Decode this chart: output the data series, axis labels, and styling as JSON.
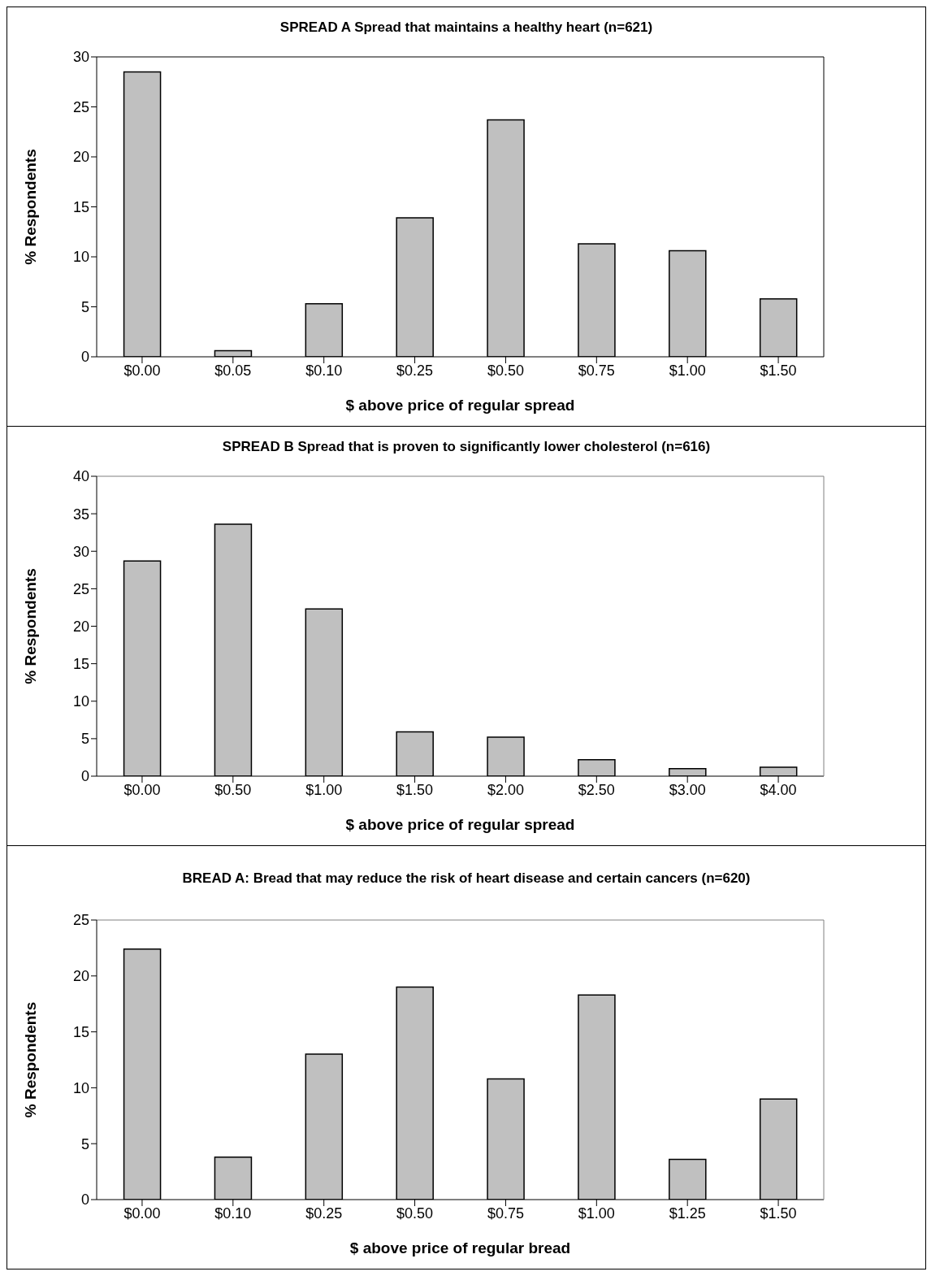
{
  "chart_data": [
    {
      "type": "bar",
      "title": "SPREAD A Spread that maintains a healthy heart (n=621)",
      "xlabel": "$ above price of regular spread",
      "ylabel": "% Respondents",
      "categories": [
        "$0.00",
        "$0.05",
        "$0.10",
        "$0.25",
        "$0.50",
        "$0.75",
        "$1.00",
        "$1.50"
      ],
      "values": [
        28.5,
        0.6,
        5.3,
        13.9,
        23.7,
        11.3,
        10.6,
        5.8
      ],
      "color": "#c0c0c0",
      "ylim": [
        0,
        30
      ],
      "yticks": [
        0,
        5,
        10,
        15,
        20,
        25,
        30
      ]
    },
    {
      "type": "bar",
      "title": "SPREAD B Spread that is proven to significantly lower cholesterol (n=616)",
      "xlabel": "$ above price of regular spread",
      "ylabel": "% Respondents",
      "categories": [
        "$0.00",
        "$0.50",
        "$1.00",
        "$1.50",
        "$2.00",
        "$2.50",
        "$3.00",
        "$4.00"
      ],
      "values": [
        28.7,
        33.6,
        22.3,
        5.9,
        5.2,
        2.2,
        1.0,
        1.2
      ],
      "color": "#c0c0c0",
      "ylim": [
        0,
        40
      ],
      "yticks": [
        0,
        5,
        10,
        15,
        20,
        25,
        30,
        35,
        40
      ]
    },
    {
      "type": "bar",
      "title": "BREAD A: Bread that may reduce the risk of heart disease and certain cancers (n=620)",
      "xlabel": "$ above price of regular bread",
      "ylabel": "% Respondents",
      "categories": [
        "$0.00",
        "$0.10",
        "$0.25",
        "$0.50",
        "$0.75",
        "$1.00",
        "$1.25",
        "$1.50"
      ],
      "values": [
        22.4,
        3.8,
        13.0,
        19.0,
        10.8,
        18.3,
        3.6,
        9.0
      ],
      "color": "#c0c0c0",
      "ylim": [
        0,
        25
      ],
      "yticks": [
        0,
        5,
        10,
        15,
        20,
        25
      ]
    }
  ]
}
